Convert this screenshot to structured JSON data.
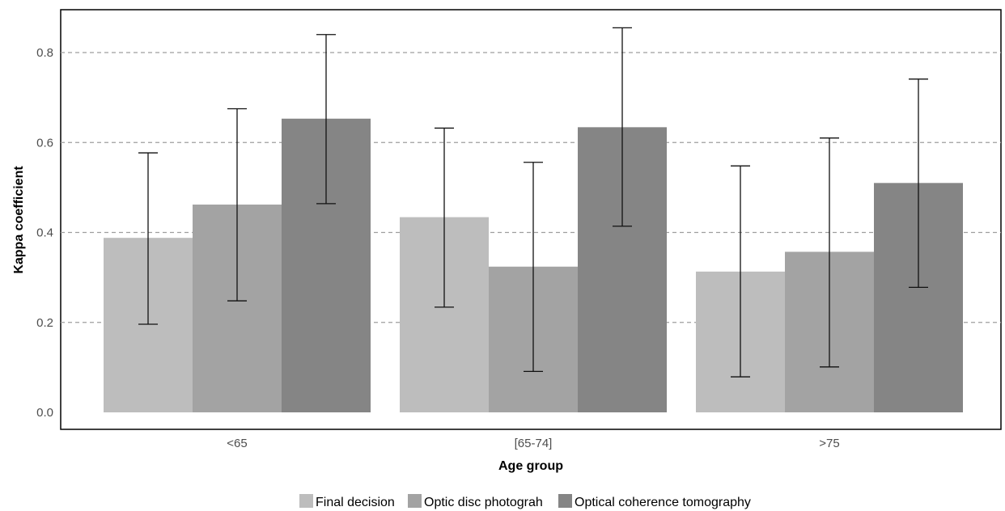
{
  "chart_data": {
    "type": "bar",
    "xlabel": "Age group",
    "ylabel": "Kappa coefficient",
    "ylim": [
      0,
      0.85
    ],
    "yticks": [
      "0.0",
      "0.2",
      "0.4",
      "0.6",
      "0.8"
    ],
    "ytick_values": [
      0,
      0.2,
      0.4,
      0.6,
      0.8
    ],
    "grid": "horizontal dashed",
    "legend_position": "bottom",
    "categories": [
      "<65",
      "[65-74]",
      ">75"
    ],
    "series": [
      {
        "name": "Final decision",
        "color": "#bdbdbd",
        "values": [
          0.388,
          0.434,
          0.313
        ],
        "lower": [
          0.196,
          0.234,
          0.079
        ],
        "upper": [
          0.577,
          0.632,
          0.548
        ]
      },
      {
        "name": "Optic disc photograh",
        "color": "#a3a3a3",
        "values": [
          0.462,
          0.324,
          0.357
        ],
        "lower": [
          0.248,
          0.091,
          0.101
        ],
        "upper": [
          0.675,
          0.556,
          0.61
        ]
      },
      {
        "name": "Optical coherence tomography",
        "color": "#858585",
        "values": [
          0.653,
          0.634,
          0.51
        ],
        "lower": [
          0.464,
          0.414,
          0.278
        ],
        "upper": [
          0.84,
          0.855,
          0.741
        ]
      }
    ]
  }
}
